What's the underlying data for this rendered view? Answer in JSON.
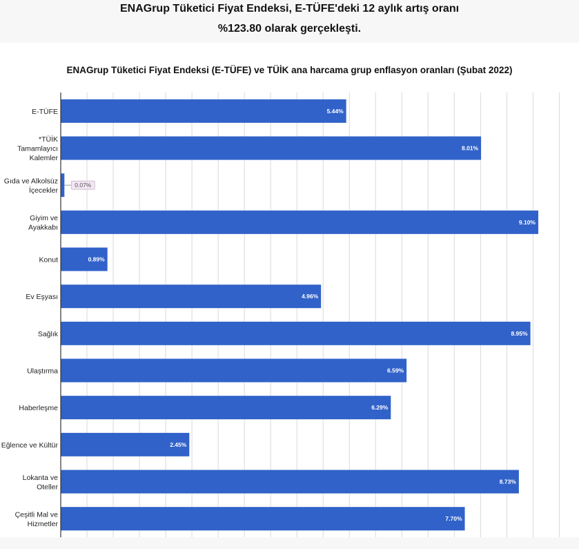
{
  "headline": {
    "line1": "ENAGrup Tüketici Fiyat Endeksi, E-TÜFE'deki 12 aylık artış oranı",
    "line2": "%123.80 olarak gerçekleşti."
  },
  "chart_data": {
    "type": "bar",
    "orientation": "horizontal",
    "title": "ENAGrup Tüketici Fiyat Endeksi (E-TÜFE) ve TÜİK ana harcama grup enflasyon oranları (Şubat 2022)",
    "xlabel": "",
    "ylabel": "",
    "xlim": [
      0,
      9.5
    ],
    "grid": true,
    "categories": [
      [
        "E-TÜFE"
      ],
      [
        "*TÜİK",
        "Tamamlayıcı",
        "Kalemler"
      ],
      [
        "Gıda ve Alkolsüz",
        "İçecekler"
      ],
      [
        "Giyim ve",
        "Ayakkabı"
      ],
      [
        "Konut"
      ],
      [
        "Ev Eşyası"
      ],
      [
        "Sağlık"
      ],
      [
        "Ulaştırma"
      ],
      [
        "Haberleşme"
      ],
      [
        "Eğlence ve Kültür"
      ],
      [
        "Lokanta ve",
        "Oteller"
      ],
      [
        "Çeşitli Mal ve",
        "Hizmetler"
      ]
    ],
    "values": [
      5.44,
      8.01,
      0.07,
      9.1,
      0.89,
      4.96,
      8.95,
      6.59,
      6.29,
      2.45,
      8.73,
      7.7
    ],
    "value_labels": [
      "5.44%",
      "8.01%",
      "0.07%",
      "9.10%",
      "0.89%",
      "4.96%",
      "8.95%",
      "6.59%",
      "6.29%",
      "2.45%",
      "8.73%",
      "7.70%"
    ],
    "colors": {
      "bar": "#3162c9",
      "grid": "#d9d9d9",
      "axis": "#333333"
    }
  }
}
